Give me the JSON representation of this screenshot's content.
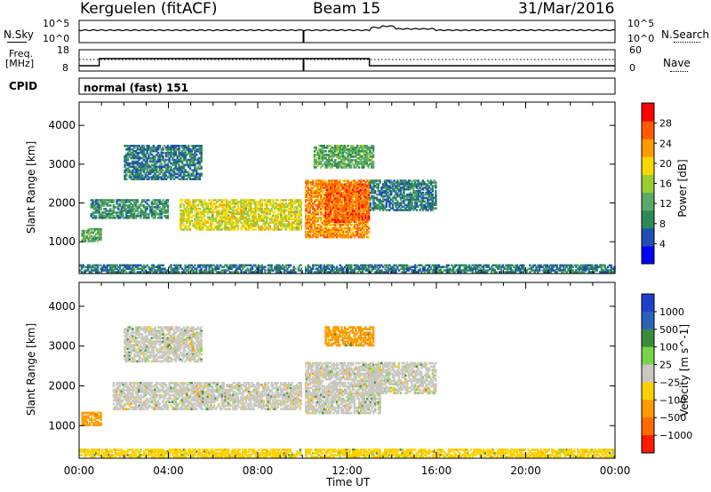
{
  "header": {
    "title": "Kerguelen (fitACF)",
    "beam": "Beam 15",
    "date": "31/Mar/2016"
  },
  "top_panels": {
    "nsky_label": "N.Sky",
    "nsearch_label": "N.Search",
    "noise_hi": "10^5",
    "noise_lo": "10^0",
    "freq_label_line1": "Freq.",
    "freq_label_line2": "[MHz]",
    "freq_hi": "18",
    "freq_lo": "8",
    "nave_label": "Nave",
    "nave_hi": "60",
    "nave_lo": "0",
    "cpid_label": "CPID",
    "cpid_value": "normal (fast) 151"
  },
  "colors": {
    "power_scale": [
      "#0000ff",
      "#1f4fb4",
      "#2e8b57",
      "#5aa86a",
      "#9acd32",
      "#ffd700",
      "#ff9a00",
      "#ff5a00",
      "#ff0000"
    ],
    "velocity_scale": [
      "#1f3fcf",
      "#2a63b8",
      "#3a8c3a",
      "#7ad24a",
      "#c8c8c0",
      "#ffd000",
      "#ff9a00",
      "#ff6a00",
      "#ff1a00"
    ]
  },
  "chart_data": [
    {
      "type": "heatmap",
      "title": "",
      "ylabel": "Slant Range [km]",
      "xlabel": "",
      "x_ticks": [
        "00:00",
        "04:00",
        "08:00",
        "12:00",
        "16:00",
        "20:00",
        "00:00"
      ],
      "y_ticks": [
        1000,
        2000,
        3000,
        4000
      ],
      "ylim": [
        180,
        4600
      ],
      "xlim_hours": [
        0,
        24
      ],
      "colorbar": {
        "label": "Power [dB]",
        "ticks": [
          4,
          8,
          12,
          16,
          20,
          24,
          28
        ],
        "range": [
          0,
          32
        ]
      },
      "echo_regions": [
        {
          "t0": 0.0,
          "t1": 24.0,
          "r0": 200,
          "r1": 420,
          "value": 8
        },
        {
          "t0": 0.1,
          "t1": 1.0,
          "r0": 1000,
          "r1": 1350,
          "value": 12
        },
        {
          "t0": 0.5,
          "t1": 4.0,
          "r0": 1600,
          "r1": 2100,
          "value": 10
        },
        {
          "t0": 2.0,
          "t1": 5.5,
          "r0": 2600,
          "r1": 3500,
          "value": 8
        },
        {
          "t0": 4.5,
          "t1": 10.0,
          "r0": 1300,
          "r1": 2100,
          "value": 18
        },
        {
          "t0": 10.0,
          "t1": 13.0,
          "r0": 1100,
          "r1": 2600,
          "value": 24
        },
        {
          "t0": 11.0,
          "t1": 13.0,
          "r0": 1500,
          "r1": 2500,
          "value": 26
        },
        {
          "t0": 10.5,
          "t1": 13.2,
          "r0": 2900,
          "r1": 3500,
          "value": 12
        },
        {
          "t0": 13.0,
          "t1": 16.0,
          "r0": 1800,
          "r1": 2600,
          "value": 8
        }
      ]
    },
    {
      "type": "heatmap",
      "title": "",
      "ylabel": "Slant Range [km]",
      "xlabel": "Time UT",
      "x_ticks": [
        "00:00",
        "04:00",
        "08:00",
        "12:00",
        "16:00",
        "20:00",
        "00:00"
      ],
      "y_ticks": [
        1000,
        2000,
        3000,
        4000
      ],
      "ylim": [
        180,
        4600
      ],
      "xlim_hours": [
        0,
        24
      ],
      "colorbar": {
        "label": "Velocity [m s^-1]",
        "ticks": [
          1000,
          500,
          100,
          25,
          -25,
          -100,
          -500,
          -1000
        ]
      },
      "echo_regions": [
        {
          "t0": 0.0,
          "t1": 24.0,
          "r0": 200,
          "r1": 420,
          "value": -100
        },
        {
          "t0": 0.1,
          "t1": 1.0,
          "r0": 1000,
          "r1": 1350,
          "value": -500
        },
        {
          "t0": 1.5,
          "t1": 10.0,
          "r0": 1400,
          "r1": 2100,
          "value": 0
        },
        {
          "t0": 10.0,
          "t1": 13.5,
          "r0": 1300,
          "r1": 2600,
          "value": 0
        },
        {
          "t0": 2.0,
          "t1": 5.5,
          "r0": 2600,
          "r1": 3500,
          "value": 0
        },
        {
          "t0": 11.0,
          "t1": 13.2,
          "r0": 3000,
          "r1": 3500,
          "value": -500
        },
        {
          "t0": 13.0,
          "t1": 16.0,
          "r0": 1800,
          "r1": 2600,
          "value": 0
        }
      ]
    }
  ]
}
